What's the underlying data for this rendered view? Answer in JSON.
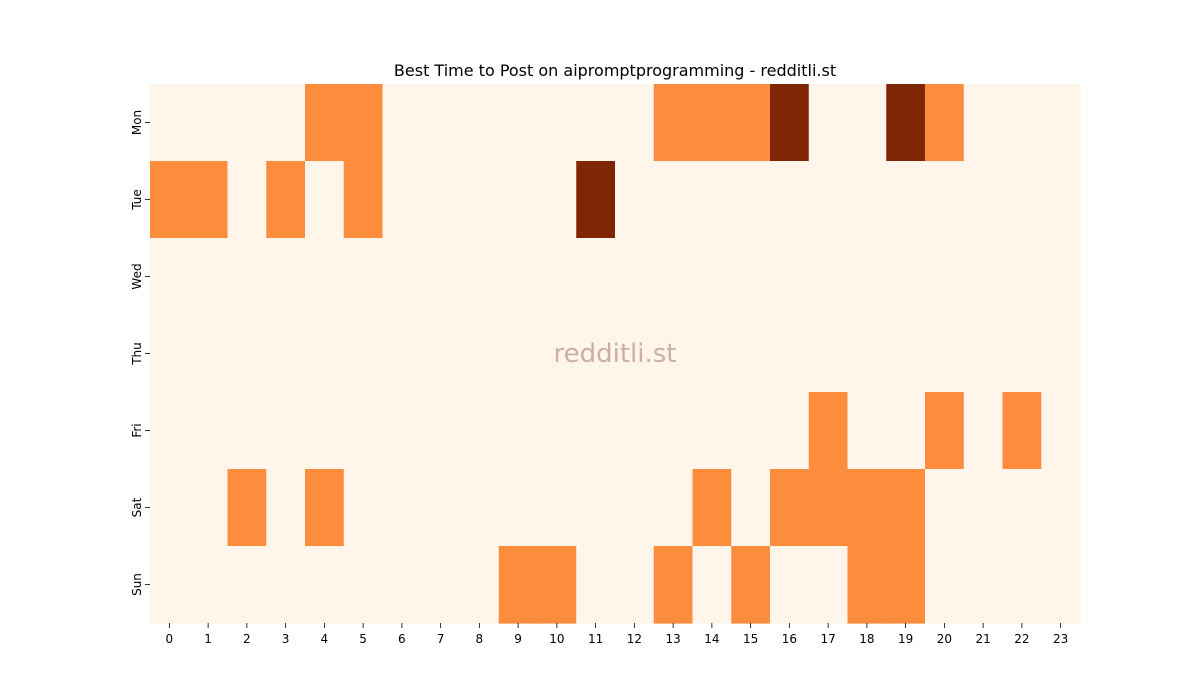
{
  "chart_data": {
    "type": "heatmap",
    "title": "Best Time to Post on aipromptprogramming - redditli.st",
    "watermark": "redditli.st",
    "x_categories": [
      "0",
      "1",
      "2",
      "3",
      "4",
      "5",
      "6",
      "7",
      "8",
      "9",
      "10",
      "11",
      "12",
      "13",
      "14",
      "15",
      "16",
      "17",
      "18",
      "19",
      "20",
      "21",
      "22",
      "23"
    ],
    "y_categories": [
      "Mon",
      "Tue",
      "Wed",
      "Thu",
      "Fri",
      "Sat",
      "Sun"
    ],
    "colormap": "Oranges",
    "value_range": [
      0,
      2
    ],
    "colors": {
      "low": "#fff5eb",
      "mid": "#fd8d3c",
      "high": "#7f2704"
    },
    "values": [
      [
        0,
        0,
        0,
        0,
        1,
        1,
        0,
        0,
        0,
        0,
        0,
        0,
        0,
        1,
        1,
        1,
        2,
        0,
        0,
        2,
        1,
        0,
        0,
        0
      ],
      [
        1,
        1,
        0,
        1,
        0,
        1,
        0,
        0,
        0,
        0,
        0,
        2,
        0,
        0,
        0,
        0,
        0,
        0,
        0,
        0,
        0,
        0,
        0,
        0
      ],
      [
        0,
        0,
        0,
        0,
        0,
        0,
        0,
        0,
        0,
        0,
        0,
        0,
        0,
        0,
        0,
        0,
        0,
        0,
        0,
        0,
        0,
        0,
        0,
        0
      ],
      [
        0,
        0,
        0,
        0,
        0,
        0,
        0,
        0,
        0,
        0,
        0,
        0,
        0,
        0,
        0,
        0,
        0,
        0,
        0,
        0,
        0,
        0,
        0,
        0
      ],
      [
        0,
        0,
        0,
        0,
        0,
        0,
        0,
        0,
        0,
        0,
        0,
        0,
        0,
        0,
        0,
        0,
        0,
        1,
        0,
        0,
        1,
        0,
        1,
        0
      ],
      [
        0,
        0,
        1,
        0,
        1,
        0,
        0,
        0,
        0,
        0,
        0,
        0,
        0,
        0,
        1,
        0,
        1,
        1,
        1,
        1,
        0,
        0,
        0,
        0
      ],
      [
        0,
        0,
        0,
        0,
        0,
        0,
        0,
        0,
        0,
        1,
        1,
        0,
        0,
        1,
        0,
        1,
        0,
        0,
        1,
        1,
        0,
        0,
        0,
        0
      ]
    ]
  }
}
